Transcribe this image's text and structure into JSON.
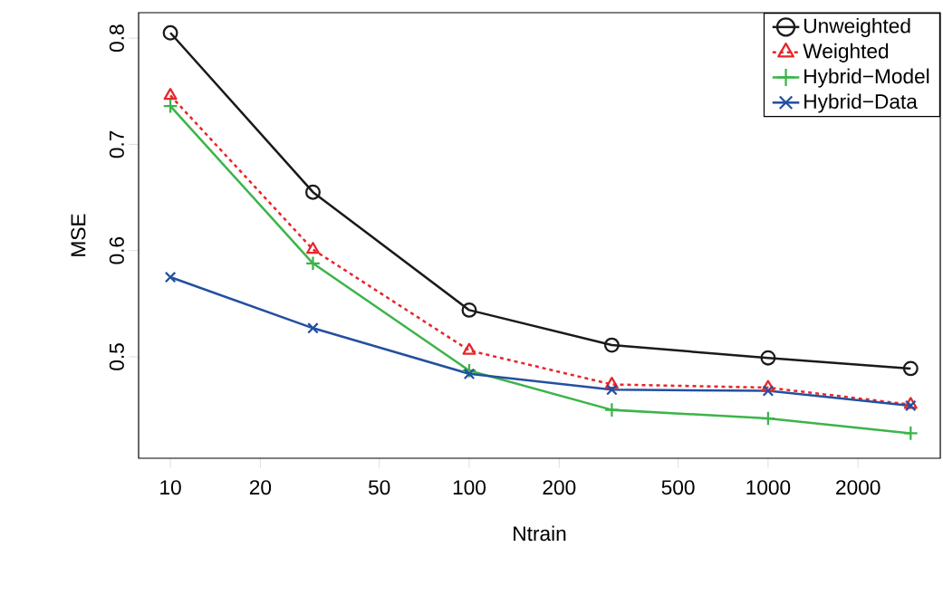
{
  "chart_data": {
    "type": "line",
    "xlabel": "Ntrain",
    "ylabel": "MSE",
    "log": "x",
    "x": [
      10,
      30,
      100,
      300,
      1000,
      3000
    ],
    "xlim": [
      7.83,
      3770
    ],
    "ylim": [
      0.4045,
      0.824
    ],
    "xticks": [
      10,
      20,
      50,
      100,
      200,
      500,
      1000,
      2000
    ],
    "yticks": [
      0.5,
      0.6,
      0.7,
      0.8
    ],
    "grid": false,
    "legend": "top right",
    "series": [
      {
        "name": "Unweighted",
        "color": "#1a1a1a",
        "marker": "circle",
        "line_style": "solid",
        "values": [
          0.805,
          0.655,
          0.544,
          0.511,
          0.499,
          0.489
        ]
      },
      {
        "name": "Weighted",
        "color": "#e8262a",
        "marker": "triangle",
        "line_style": "dashed",
        "values": [
          0.746,
          0.601,
          0.506,
          0.474,
          0.471,
          0.455
        ]
      },
      {
        "name": "Hybrid−Model",
        "color": "#3cb44a",
        "marker": "cross",
        "line_style": "solid",
        "values": [
          0.736,
          0.588,
          0.487,
          0.45,
          0.442,
          0.428
        ]
      },
      {
        "name": "Hybrid−Data",
        "color": "#2350a0",
        "marker": "x",
        "line_style": "solid",
        "values": [
          0.575,
          0.527,
          0.484,
          0.469,
          0.468,
          0.454
        ]
      }
    ]
  }
}
